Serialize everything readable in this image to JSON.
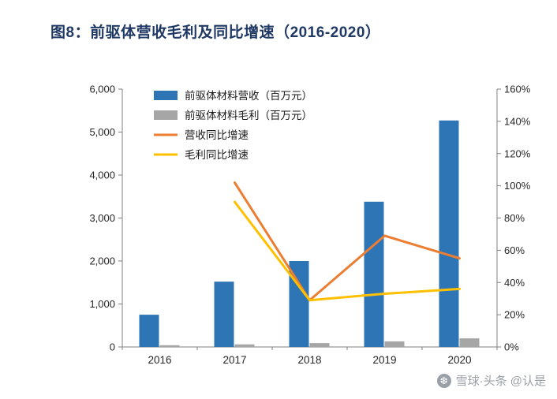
{
  "title": "图8：前驱体营收毛利及同比增速（2016-2020）",
  "watermark": {
    "icon": "snowball-icon",
    "text": "雪球·头条 @认是"
  },
  "chart_data": {
    "type": "bar",
    "subtype": "bar+line-combo",
    "categories": [
      "2016",
      "2017",
      "2018",
      "2019",
      "2020"
    ],
    "series": [
      {
        "name": "前驱体材料营收（百万元）",
        "type": "bar",
        "axis": "left",
        "color": "#2E75B6",
        "values": [
          750,
          1520,
          2000,
          3380,
          5270
        ]
      },
      {
        "name": "前驱体材料毛利（百万元）",
        "type": "bar",
        "axis": "left",
        "color": "#A6A6A6",
        "values": [
          40,
          60,
          90,
          130,
          200
        ]
      },
      {
        "name": "营收同比增速",
        "type": "line",
        "axis": "right",
        "color": "#ED7D31",
        "values": [
          null,
          102,
          29,
          69,
          55
        ]
      },
      {
        "name": "毛利同比增速",
        "type": "line",
        "axis": "right",
        "color": "#FFC000",
        "values": [
          null,
          90,
          29,
          33,
          36
        ]
      }
    ],
    "left_axis": {
      "min": 0,
      "max": 6000,
      "step": 1000,
      "tick_labels": [
        "0",
        "1,000",
        "2,000",
        "3,000",
        "4,000",
        "5,000",
        "6,000"
      ]
    },
    "right_axis": {
      "min": 0,
      "max": 160,
      "step": 20,
      "tick_labels": [
        "0%",
        "20%",
        "40%",
        "60%",
        "80%",
        "100%",
        "120%",
        "140%",
        "160%"
      ]
    },
    "legend_position": "top-left-inside",
    "grid": false
  }
}
